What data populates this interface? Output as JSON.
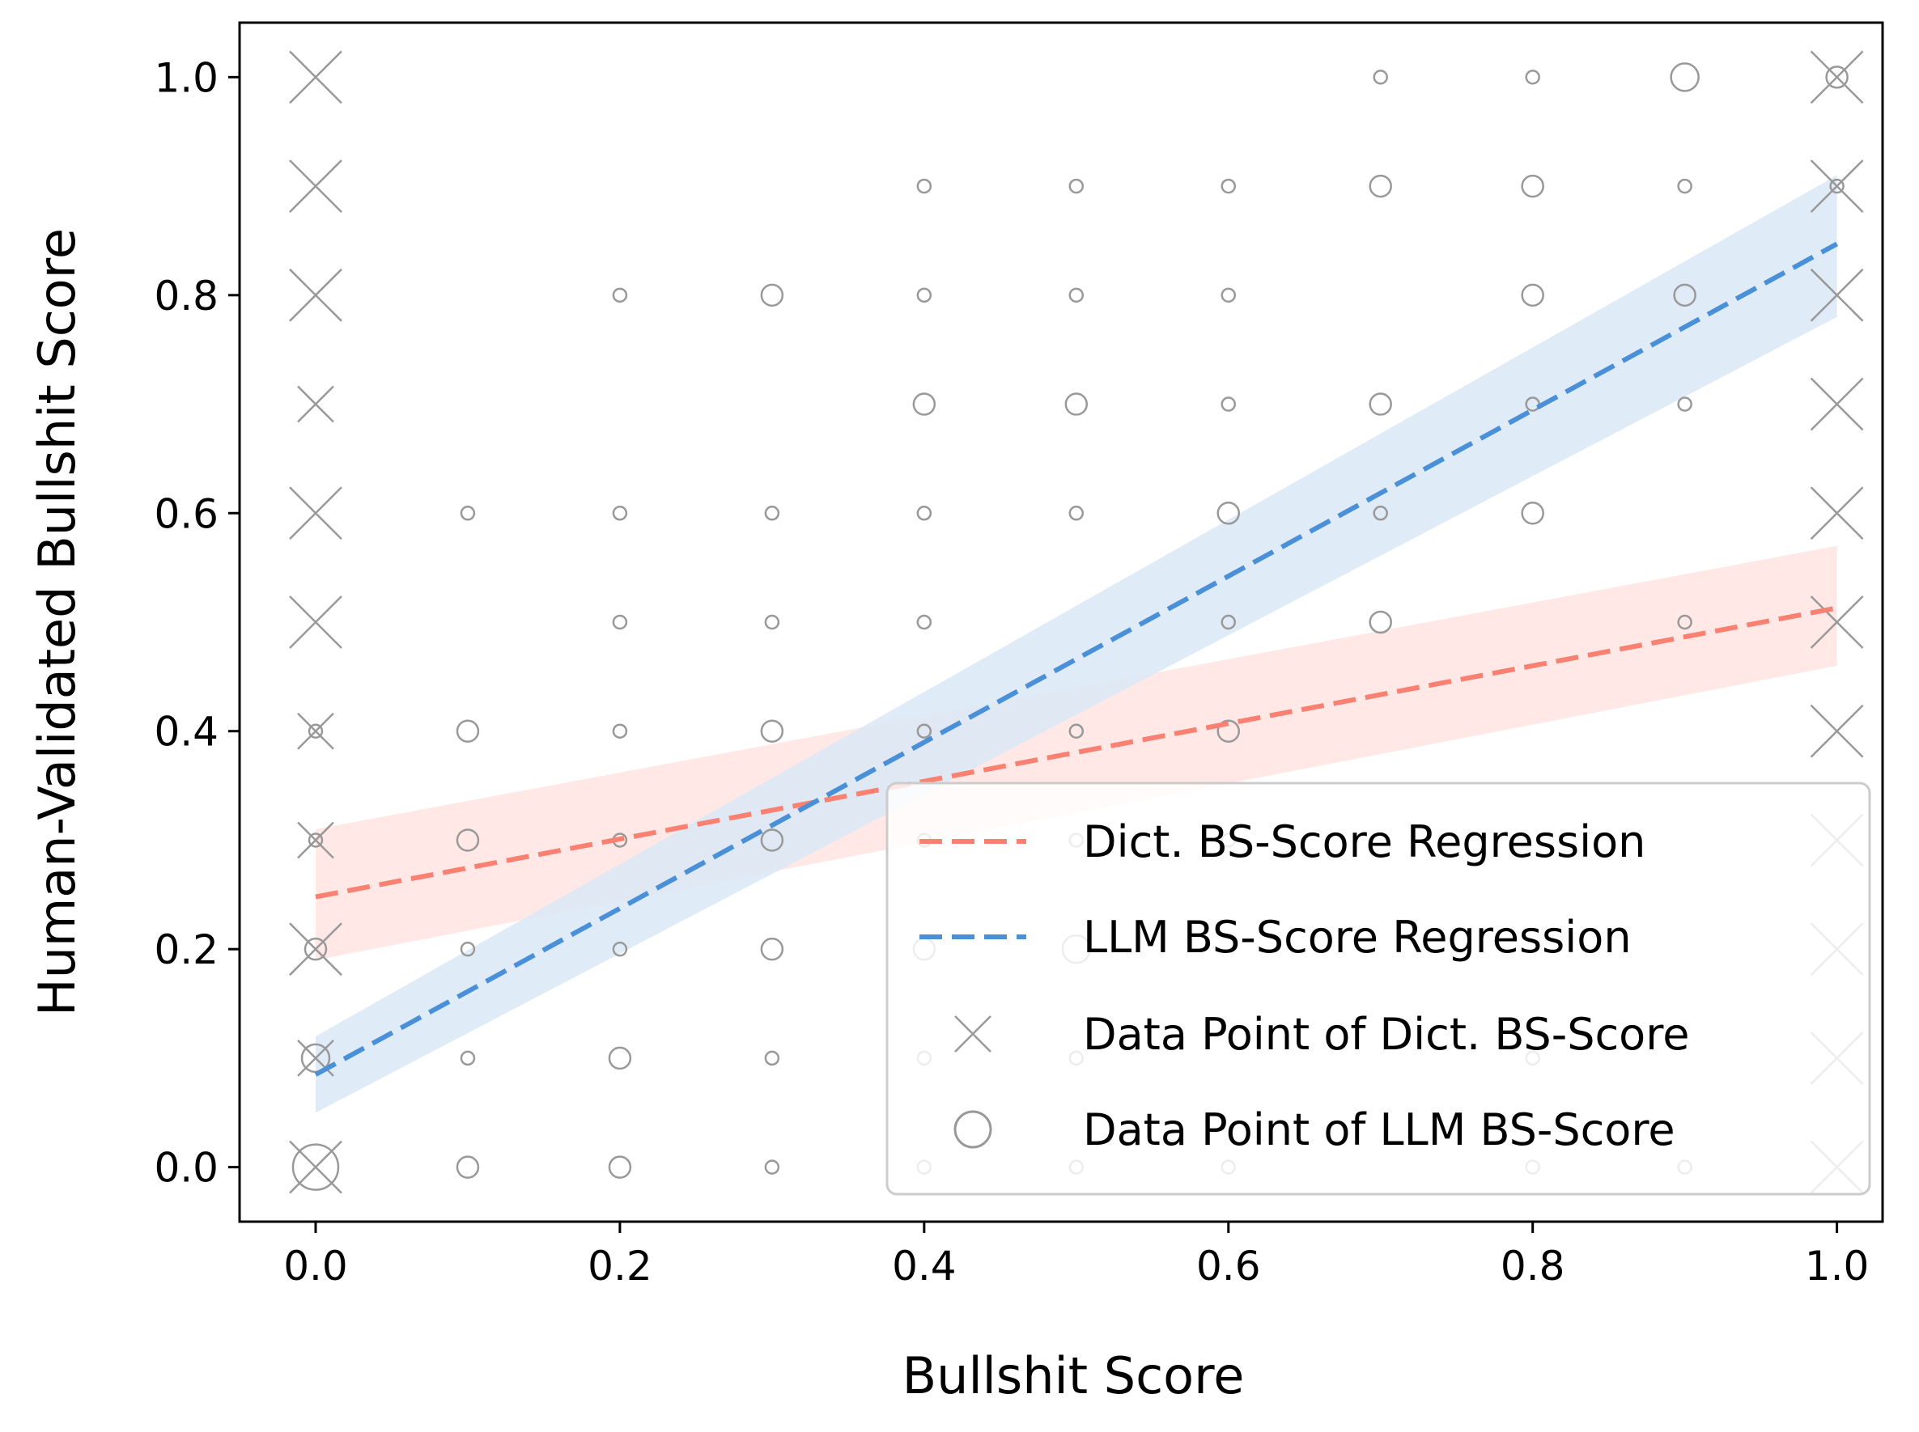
{
  "chart_data": {
    "type": "scatter",
    "title": "",
    "xlabel": "Bullshit Score",
    "ylabel": "Human-Validated Bullshit Score",
    "xlim": [
      -0.05,
      1.03
    ],
    "ylim": [
      -0.05,
      1.05
    ],
    "xticks": [
      "0.0",
      "0.2",
      "0.4",
      "0.6",
      "0.8",
      "1.0"
    ],
    "yticks": [
      "0.0",
      "0.2",
      "0.4",
      "0.6",
      "0.8",
      "1.0"
    ],
    "grid": false,
    "legend_position": "bottom-right",
    "colors": {
      "dict": "#fa8072",
      "llm": "#4a90d9",
      "dict_band": "#ffe4e1",
      "llm_band": "#dbe8f7",
      "points": "#999999"
    },
    "series": [
      {
        "name": "Dict. BS-Score Regression",
        "kind": "regression",
        "x": [
          0.0,
          1.0
        ],
        "y": [
          0.248,
          0.513
        ],
        "ci_lower": [
          0.19,
          0.46
        ],
        "ci_upper": [
          0.31,
          0.57
        ]
      },
      {
        "name": "LLM BS-Score Regression",
        "kind": "regression",
        "x": [
          0.0,
          1.0
        ],
        "y": [
          0.085,
          0.847
        ],
        "ci_lower": [
          0.05,
          0.78
        ],
        "ci_upper": [
          0.12,
          0.91
        ]
      },
      {
        "name": "Data Point of Dict. BS-Score",
        "kind": "marker-x",
        "points": [
          {
            "x": 0.0,
            "y": 1.0,
            "size": "large"
          },
          {
            "x": 0.0,
            "y": 0.9,
            "size": "large"
          },
          {
            "x": 0.0,
            "y": 0.8,
            "size": "large"
          },
          {
            "x": 0.0,
            "y": 0.7,
            "size": "medium"
          },
          {
            "x": 0.0,
            "y": 0.6,
            "size": "large"
          },
          {
            "x": 0.0,
            "y": 0.5,
            "size": "large"
          },
          {
            "x": 0.0,
            "y": 0.4,
            "size": "medium"
          },
          {
            "x": 0.0,
            "y": 0.3,
            "size": "medium"
          },
          {
            "x": 0.0,
            "y": 0.2,
            "size": "large"
          },
          {
            "x": 0.0,
            "y": 0.1,
            "size": "medium"
          },
          {
            "x": 0.0,
            "y": 0.0,
            "size": "large"
          },
          {
            "x": 1.0,
            "y": 1.0,
            "size": "large"
          },
          {
            "x": 1.0,
            "y": 0.9,
            "size": "large"
          },
          {
            "x": 1.0,
            "y": 0.8,
            "size": "large"
          },
          {
            "x": 1.0,
            "y": 0.7,
            "size": "large"
          },
          {
            "x": 1.0,
            "y": 0.6,
            "size": "large"
          },
          {
            "x": 1.0,
            "y": 0.5,
            "size": "large"
          },
          {
            "x": 1.0,
            "y": 0.4,
            "size": "large"
          },
          {
            "x": 1.0,
            "y": 0.3,
            "size": "large"
          },
          {
            "x": 1.0,
            "y": 0.2,
            "size": "large"
          },
          {
            "x": 1.0,
            "y": 0.1,
            "size": "large"
          },
          {
            "x": 1.0,
            "y": 0.0,
            "size": "large"
          }
        ]
      },
      {
        "name": "Data Point of LLM BS-Score",
        "kind": "marker-circle",
        "points": [
          {
            "x": 0.0,
            "y": 0.0,
            "size": "xlarge"
          },
          {
            "x": 0.0,
            "y": 0.1,
            "size": "large"
          },
          {
            "x": 0.0,
            "y": 0.2,
            "size": "medium"
          },
          {
            "x": 0.0,
            "y": 0.3,
            "size": "small"
          },
          {
            "x": 0.0,
            "y": 0.4,
            "size": "small"
          },
          {
            "x": 0.1,
            "y": 0.0,
            "size": "medium"
          },
          {
            "x": 0.1,
            "y": 0.1,
            "size": "small"
          },
          {
            "x": 0.1,
            "y": 0.2,
            "size": "small"
          },
          {
            "x": 0.1,
            "y": 0.3,
            "size": "medium"
          },
          {
            "x": 0.1,
            "y": 0.4,
            "size": "medium"
          },
          {
            "x": 0.1,
            "y": 0.6,
            "size": "small"
          },
          {
            "x": 0.2,
            "y": 0.0,
            "size": "medium"
          },
          {
            "x": 0.2,
            "y": 0.1,
            "size": "medium"
          },
          {
            "x": 0.2,
            "y": 0.2,
            "size": "small"
          },
          {
            "x": 0.2,
            "y": 0.3,
            "size": "small"
          },
          {
            "x": 0.2,
            "y": 0.4,
            "size": "small"
          },
          {
            "x": 0.2,
            "y": 0.5,
            "size": "small"
          },
          {
            "x": 0.2,
            "y": 0.6,
            "size": "small"
          },
          {
            "x": 0.2,
            "y": 0.8,
            "size": "small"
          },
          {
            "x": 0.3,
            "y": 0.0,
            "size": "small"
          },
          {
            "x": 0.3,
            "y": 0.1,
            "size": "small"
          },
          {
            "x": 0.3,
            "y": 0.2,
            "size": "medium"
          },
          {
            "x": 0.3,
            "y": 0.3,
            "size": "medium"
          },
          {
            "x": 0.3,
            "y": 0.4,
            "size": "medium"
          },
          {
            "x": 0.3,
            "y": 0.5,
            "size": "small"
          },
          {
            "x": 0.3,
            "y": 0.6,
            "size": "small"
          },
          {
            "x": 0.3,
            "y": 0.8,
            "size": "medium"
          },
          {
            "x": 0.4,
            "y": 0.0,
            "size": "small"
          },
          {
            "x": 0.4,
            "y": 0.1,
            "size": "small"
          },
          {
            "x": 0.4,
            "y": 0.2,
            "size": "medium"
          },
          {
            "x": 0.4,
            "y": 0.3,
            "size": "small"
          },
          {
            "x": 0.4,
            "y": 0.4,
            "size": "small"
          },
          {
            "x": 0.4,
            "y": 0.5,
            "size": "small"
          },
          {
            "x": 0.4,
            "y": 0.6,
            "size": "small"
          },
          {
            "x": 0.4,
            "y": 0.7,
            "size": "medium"
          },
          {
            "x": 0.4,
            "y": 0.8,
            "size": "small"
          },
          {
            "x": 0.4,
            "y": 0.9,
            "size": "small"
          },
          {
            "x": 0.5,
            "y": 0.0,
            "size": "small"
          },
          {
            "x": 0.5,
            "y": 0.1,
            "size": "small"
          },
          {
            "x": 0.5,
            "y": 0.2,
            "size": "large"
          },
          {
            "x": 0.5,
            "y": 0.3,
            "size": "small"
          },
          {
            "x": 0.5,
            "y": 0.4,
            "size": "small"
          },
          {
            "x": 0.5,
            "y": 0.6,
            "size": "small"
          },
          {
            "x": 0.5,
            "y": 0.7,
            "size": "medium"
          },
          {
            "x": 0.5,
            "y": 0.8,
            "size": "small"
          },
          {
            "x": 0.5,
            "y": 0.9,
            "size": "small"
          },
          {
            "x": 0.6,
            "y": 0.0,
            "size": "small"
          },
          {
            "x": 0.6,
            "y": 0.3,
            "size": "small"
          },
          {
            "x": 0.6,
            "y": 0.4,
            "size": "medium"
          },
          {
            "x": 0.6,
            "y": 0.5,
            "size": "small"
          },
          {
            "x": 0.6,
            "y": 0.6,
            "size": "medium"
          },
          {
            "x": 0.6,
            "y": 0.7,
            "size": "small"
          },
          {
            "x": 0.6,
            "y": 0.8,
            "size": "small"
          },
          {
            "x": 0.6,
            "y": 0.9,
            "size": "small"
          },
          {
            "x": 0.7,
            "y": 0.5,
            "size": "medium"
          },
          {
            "x": 0.7,
            "y": 0.6,
            "size": "small"
          },
          {
            "x": 0.7,
            "y": 0.7,
            "size": "medium"
          },
          {
            "x": 0.7,
            "y": 0.9,
            "size": "medium"
          },
          {
            "x": 0.7,
            "y": 1.0,
            "size": "small"
          },
          {
            "x": 0.8,
            "y": 0.0,
            "size": "small"
          },
          {
            "x": 0.8,
            "y": 0.1,
            "size": "small"
          },
          {
            "x": 0.8,
            "y": 0.6,
            "size": "medium"
          },
          {
            "x": 0.8,
            "y": 0.7,
            "size": "small"
          },
          {
            "x": 0.8,
            "y": 0.8,
            "size": "medium"
          },
          {
            "x": 0.8,
            "y": 0.9,
            "size": "medium"
          },
          {
            "x": 0.8,
            "y": 1.0,
            "size": "small"
          },
          {
            "x": 0.9,
            "y": 0.0,
            "size": "small"
          },
          {
            "x": 0.9,
            "y": 0.5,
            "size": "small"
          },
          {
            "x": 0.9,
            "y": 0.7,
            "size": "small"
          },
          {
            "x": 0.9,
            "y": 0.8,
            "size": "medium"
          },
          {
            "x": 0.9,
            "y": 0.9,
            "size": "small"
          },
          {
            "x": 0.9,
            "y": 1.0,
            "size": "large"
          },
          {
            "x": 1.0,
            "y": 0.9,
            "size": "small"
          },
          {
            "x": 1.0,
            "y": 1.0,
            "size": "medium"
          }
        ]
      }
    ]
  }
}
